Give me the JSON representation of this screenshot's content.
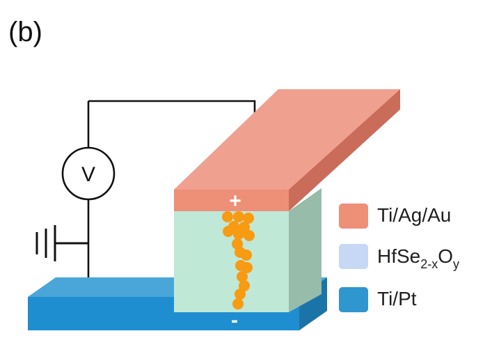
{
  "panel_label": "(b)",
  "voltmeter": {
    "symbol": "V"
  },
  "polarity": {
    "top": "+",
    "bottom": "-"
  },
  "legend": [
    {
      "material": "Ti/Ag/Au",
      "color": "#ee8f78"
    },
    {
      "material_base": "HfSe",
      "material_sub1": "2-x",
      "material_mid": "O",
      "material_sub2": "y",
      "color": "#c6d8f4"
    },
    {
      "material": "Ti/Pt",
      "color": "#2f96d0"
    }
  ],
  "colors": {
    "top_electrode_top": "#f0a08e",
    "top_electrode_front": "#ee8f78",
    "top_electrode_side": "#c96c5a",
    "dielectric_front": "#bfe8d7",
    "dielectric_side": "#97bca9",
    "bottom_electrode_top": "#4aa6d8",
    "bottom_electrode_front": "#1f8ed0",
    "bottom_electrode_side": "#1b74a8",
    "filament": "#f89a12",
    "wire": "#111111"
  }
}
